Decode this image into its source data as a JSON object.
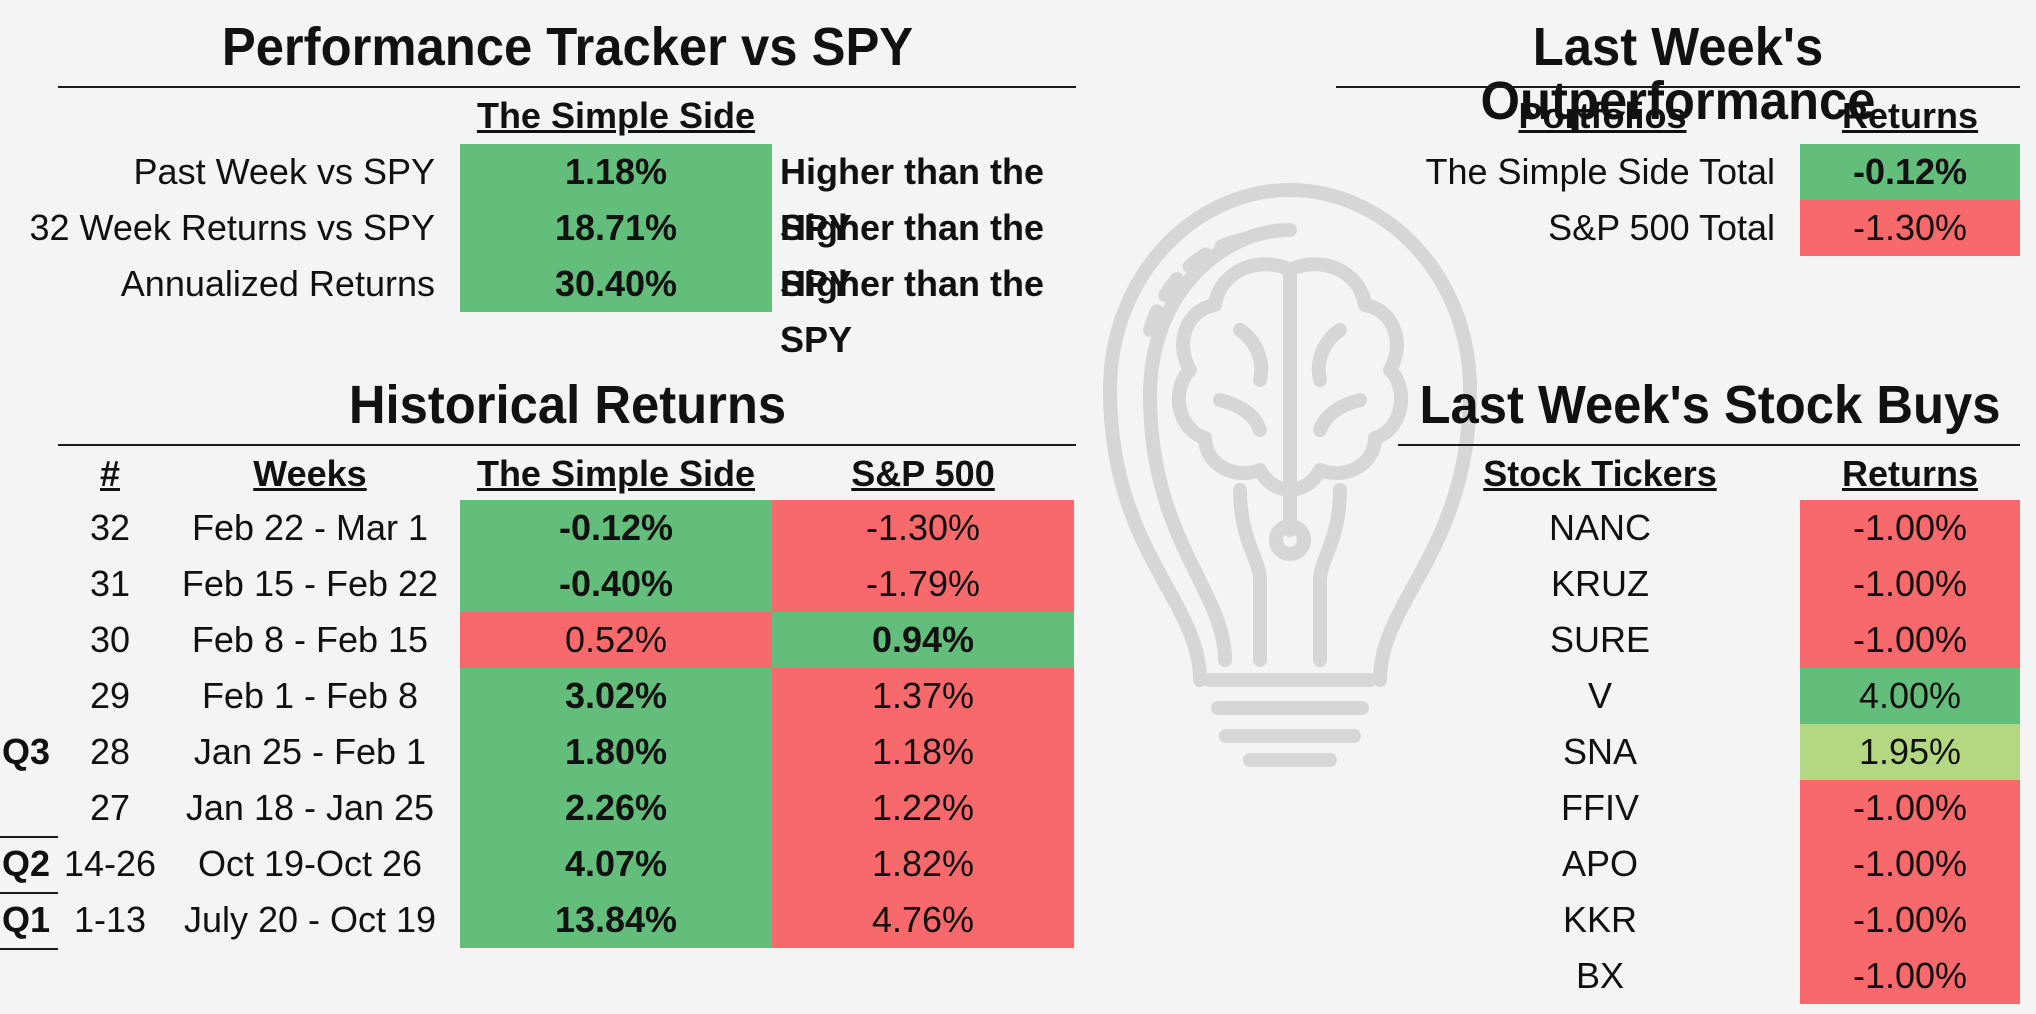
{
  "colors": {
    "green": "#63be7b",
    "red": "#f8696b",
    "light_green": "#b3d881",
    "background": "#f4f4f4"
  },
  "watermark": {
    "icon": "brain-lightbulb-icon"
  },
  "tracker": {
    "title": "Performance Tracker vs SPY",
    "column_header": "The Simple Side",
    "rows": [
      {
        "label": "Past Week vs SPY",
        "value": "1.18%",
        "note": "Higher than the SPY",
        "color": "green"
      },
      {
        "label": "32 Week Returns vs SPY",
        "value": "18.71%",
        "note": "Higher than the SPY",
        "color": "green"
      },
      {
        "label": "Annualized Returns",
        "value": "30.40%",
        "note": "Higher than the SPY",
        "color": "green"
      }
    ]
  },
  "outperformance": {
    "title": "Last Week's Outperformance",
    "headers": {
      "portfolios": "Portfolios",
      "returns": "Returns"
    },
    "rows": [
      {
        "portfolio": "The Simple Side Total",
        "return": "-0.12%",
        "color": "green"
      },
      {
        "portfolio": "S&P 500 Total",
        "return": "-1.30%",
        "color": "red"
      }
    ]
  },
  "historical": {
    "title": "Historical Returns",
    "headers": {
      "num": "#",
      "weeks": "Weeks",
      "simple_side": "The Simple Side",
      "sp500": "S&P 500"
    },
    "rows": [
      {
        "quarter": "",
        "num": "32",
        "weeks": "Feb 22 - Mar 1",
        "simple": "-0.12%",
        "sp": "-1.30%",
        "simple_color": "green",
        "sp_color": "red"
      },
      {
        "quarter": "",
        "num": "31",
        "weeks": "Feb 15 - Feb 22",
        "simple": "-0.40%",
        "sp": "-1.79%",
        "simple_color": "green",
        "sp_color": "red"
      },
      {
        "quarter": "",
        "num": "30",
        "weeks": "Feb 8 - Feb 15",
        "simple": "0.52%",
        "sp": "0.94%",
        "simple_color": "red",
        "sp_color": "green"
      },
      {
        "quarter": "",
        "num": "29",
        "weeks": "Feb 1 - Feb 8",
        "simple": "3.02%",
        "sp": "1.37%",
        "simple_color": "green",
        "sp_color": "red"
      },
      {
        "quarter": "Q3",
        "num": "28",
        "weeks": "Jan 25 - Feb 1",
        "simple": "1.80%",
        "sp": "1.18%",
        "simple_color": "green",
        "sp_color": "red"
      },
      {
        "quarter": "",
        "num": "27",
        "weeks": "Jan 18 - Jan 25",
        "simple": "2.26%",
        "sp": "1.22%",
        "simple_color": "green",
        "sp_color": "red"
      },
      {
        "quarter": "Q2",
        "num": "14-26",
        "weeks": "Oct 19-Oct 26",
        "simple": "4.07%",
        "sp": "1.82%",
        "simple_color": "green",
        "sp_color": "red"
      },
      {
        "quarter": "Q1",
        "num": "1-13",
        "weeks": "July 20 - Oct 19",
        "simple": "13.84%",
        "sp": "4.76%",
        "simple_color": "green",
        "sp_color": "red"
      }
    ]
  },
  "stock_buys": {
    "title": "Last Week's Stock Buys",
    "headers": {
      "tickers": "Stock Tickers",
      "returns": "Returns"
    },
    "rows": [
      {
        "ticker": "NANC",
        "return": "-1.00%",
        "color": "red"
      },
      {
        "ticker": "KRUZ",
        "return": "-1.00%",
        "color": "red"
      },
      {
        "ticker": "SURE",
        "return": "-1.00%",
        "color": "red"
      },
      {
        "ticker": "V",
        "return": "4.00%",
        "color": "green"
      },
      {
        "ticker": "SNA",
        "return": "1.95%",
        "color": "light_green"
      },
      {
        "ticker": "FFIV",
        "return": "-1.00%",
        "color": "red"
      },
      {
        "ticker": "APO",
        "return": "-1.00%",
        "color": "red"
      },
      {
        "ticker": "KKR",
        "return": "-1.00%",
        "color": "red"
      },
      {
        "ticker": "BX",
        "return": "-1.00%",
        "color": "red"
      }
    ]
  }
}
